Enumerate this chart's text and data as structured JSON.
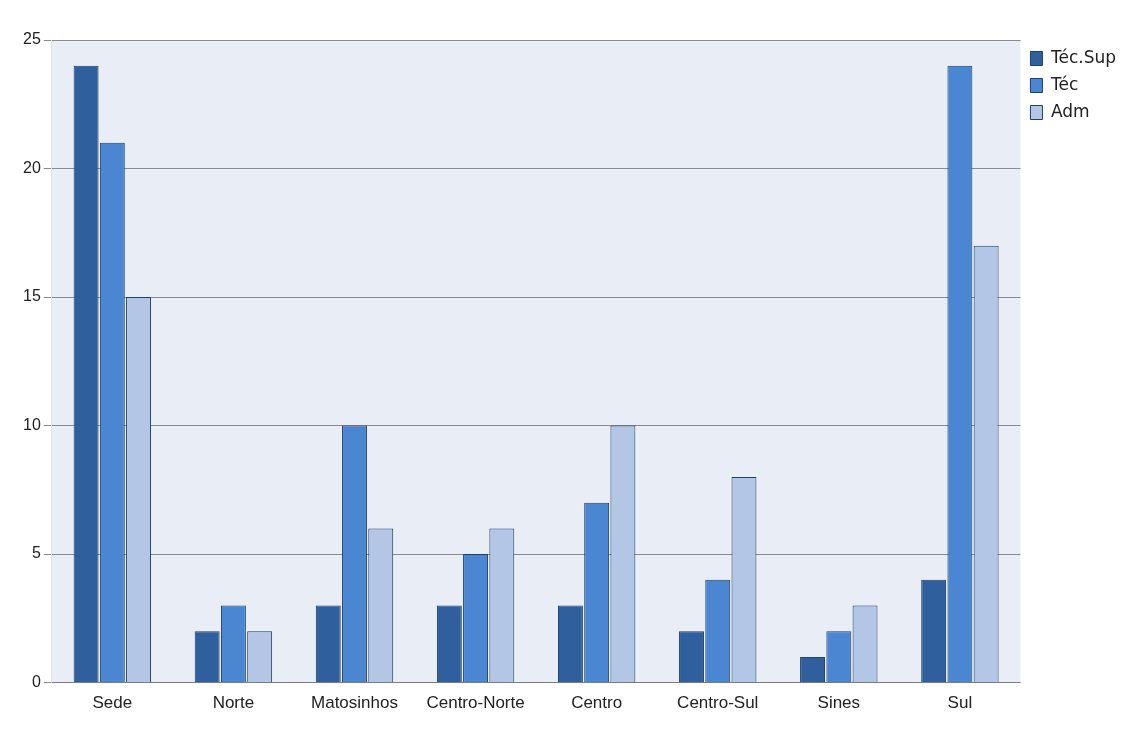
{
  "chart_data": {
    "type": "bar",
    "categories": [
      "Sede",
      "Norte",
      "Matosinhos",
      "Centro-Norte",
      "Centro",
      "Centro-Sul",
      "Sines",
      "Sul"
    ],
    "series": [
      {
        "name": "Téc.Sup",
        "color": "#2f5f9c",
        "values": [
          24,
          2,
          3,
          3,
          3,
          2,
          1,
          4
        ]
      },
      {
        "name": "Téc",
        "color": "#4a86d2",
        "values": [
          21,
          3,
          10,
          5,
          7,
          4,
          2,
          24
        ]
      },
      {
        "name": "Adm",
        "color": "#b4c6e6",
        "values": [
          15,
          2,
          6,
          6,
          10,
          8,
          3,
          17
        ]
      }
    ],
    "ylim": [
      0,
      25
    ],
    "yticks": [
      0,
      5,
      10,
      15,
      20,
      25
    ],
    "grid": "y",
    "legend": "top right"
  }
}
